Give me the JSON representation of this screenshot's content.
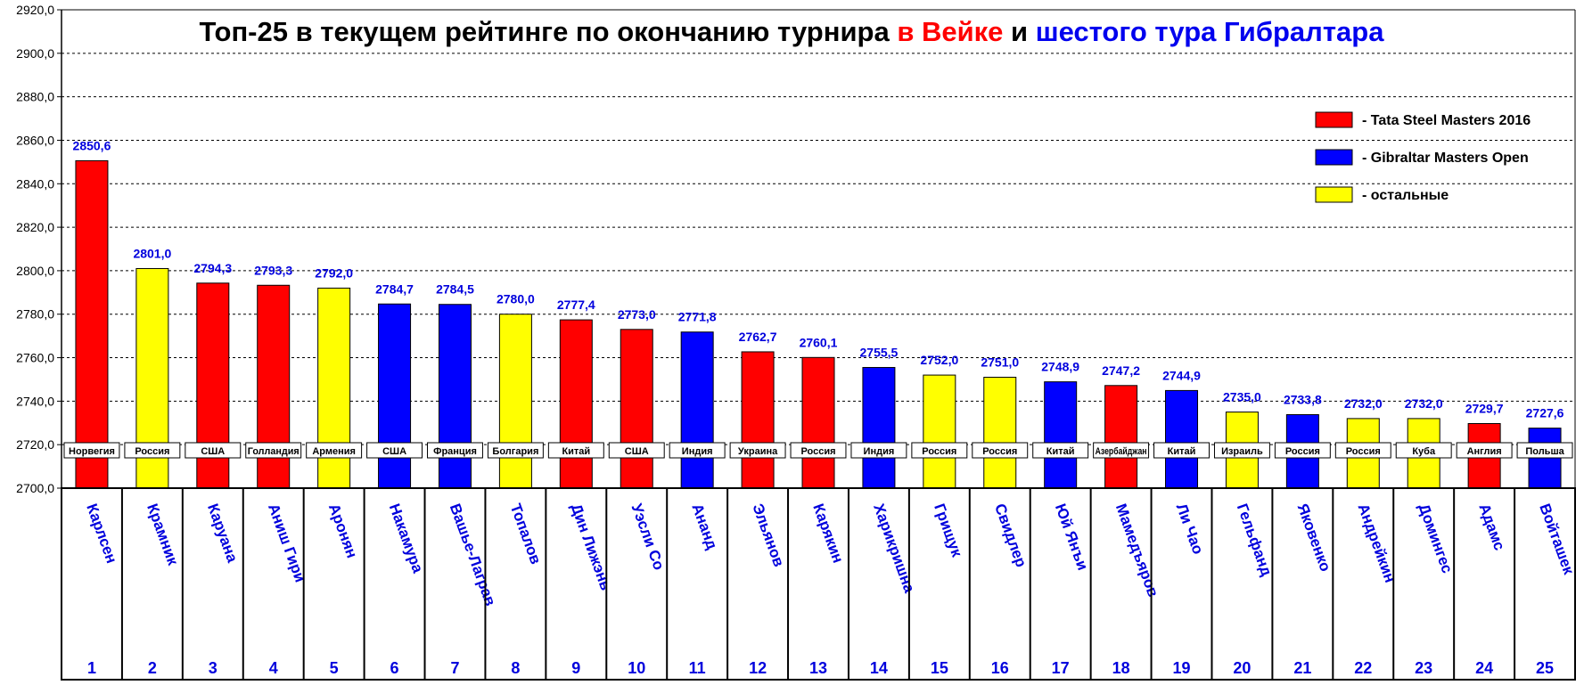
{
  "title": {
    "part1": "Топ-25 в текущем рейтинге по окончанию турнира ",
    "part2": "в Вейке",
    "part3": " и ",
    "part4": "шестого тура Гибралтара",
    "colors": {
      "default": "#000000",
      "wijk": "#ff0000",
      "gibraltar": "#0000ee"
    }
  },
  "legend": [
    {
      "key": "tata",
      "label": "- Tata Steel Masters 2016",
      "color": "#ff0000"
    },
    {
      "key": "gib",
      "label": "- Gibraltar Masters Open",
      "color": "#0000ff"
    },
    {
      "key": "other",
      "label": "- остальные",
      "color": "#ffff00"
    }
  ],
  "chart_data": {
    "type": "bar",
    "ylim": [
      2700,
      2920
    ],
    "ytick_step": 20,
    "ytick_format": "comma-1-decimal",
    "grid": "horizontal-dashed",
    "categories": [
      "1",
      "2",
      "3",
      "4",
      "5",
      "6",
      "7",
      "8",
      "9",
      "10",
      "11",
      "12",
      "13",
      "14",
      "15",
      "16",
      "17",
      "18",
      "19",
      "20",
      "21",
      "22",
      "23",
      "24",
      "25"
    ],
    "players": [
      {
        "rank": "1",
        "name": "Карлсен",
        "country": "Норвегия",
        "value": 2850.6,
        "label": "2850,6",
        "group": "tata"
      },
      {
        "rank": "2",
        "name": "Крамник",
        "country": "Россия",
        "value": 2801.0,
        "label": "2801,0",
        "group": "other"
      },
      {
        "rank": "3",
        "name": "Каруана",
        "country": "США",
        "value": 2794.3,
        "label": "2794,3",
        "group": "tata"
      },
      {
        "rank": "4",
        "name": "Аниш Гири",
        "country": "Голландия",
        "value": 2793.3,
        "label": "2793,3",
        "group": "tata"
      },
      {
        "rank": "5",
        "name": "Аронян",
        "country": "Армения",
        "value": 2792.0,
        "label": "2792,0",
        "group": "other"
      },
      {
        "rank": "6",
        "name": "Накамура",
        "country": "США",
        "value": 2784.7,
        "label": "2784,7",
        "group": "gib"
      },
      {
        "rank": "7",
        "name": "Вашье-Лаграв",
        "country": "Франция",
        "value": 2784.5,
        "label": "2784,5",
        "group": "gib"
      },
      {
        "rank": "8",
        "name": "Топалов",
        "country": "Болгария",
        "value": 2780.0,
        "label": "2780,0",
        "group": "other"
      },
      {
        "rank": "9",
        "name": "Дин Лижэнь",
        "country": "Китай",
        "value": 2777.4,
        "label": "2777,4",
        "group": "tata"
      },
      {
        "rank": "10",
        "name": "Уэсли Со",
        "country": "США",
        "value": 2773.0,
        "label": "2773,0",
        "group": "tata"
      },
      {
        "rank": "11",
        "name": "Ананд",
        "country": "Индия",
        "value": 2771.8,
        "label": "2771,8",
        "group": "gib"
      },
      {
        "rank": "12",
        "name": "Эльянов",
        "country": "Украина",
        "value": 2762.7,
        "label": "2762,7",
        "group": "tata"
      },
      {
        "rank": "13",
        "name": "Карякин",
        "country": "Россия",
        "value": 2760.1,
        "label": "2760,1",
        "group": "tata"
      },
      {
        "rank": "14",
        "name": "Харикришна",
        "country": "Индия",
        "value": 2755.5,
        "label": "2755,5",
        "group": "gib"
      },
      {
        "rank": "15",
        "name": "Грищук",
        "country": "Россия",
        "value": 2752.0,
        "label": "2752,0",
        "group": "other"
      },
      {
        "rank": "16",
        "name": "Свидлер",
        "country": "Россия",
        "value": 2751.0,
        "label": "2751,0",
        "group": "other"
      },
      {
        "rank": "17",
        "name": "Юй Янъи",
        "country": "Китай",
        "value": 2748.9,
        "label": "2748,9",
        "group": "gib"
      },
      {
        "rank": "18",
        "name": "Мамедъяров",
        "country": "Азербайджан",
        "value": 2747.2,
        "label": "2747,2",
        "group": "tata"
      },
      {
        "rank": "19",
        "name": "Ли Чао",
        "country": "Китай",
        "value": 2744.9,
        "label": "2744,9",
        "group": "gib"
      },
      {
        "rank": "20",
        "name": "Гельфанд",
        "country": "Израиль",
        "value": 2735.0,
        "label": "2735,0",
        "group": "other"
      },
      {
        "rank": "21",
        "name": "Яковенко",
        "country": "Россия",
        "value": 2733.8,
        "label": "2733,8",
        "group": "gib"
      },
      {
        "rank": "22",
        "name": "Андрейкин",
        "country": "Россия",
        "value": 2732.0,
        "label": "2732,0",
        "group": "other"
      },
      {
        "rank": "23",
        "name": "Домингес",
        "country": "Куба",
        "value": 2732.0,
        "label": "2732,0",
        "group": "other"
      },
      {
        "rank": "24",
        "name": "Адамс",
        "country": "Англия",
        "value": 2729.7,
        "label": "2729,7",
        "group": "tata"
      },
      {
        "rank": "25",
        "name": "Войташек",
        "country": "Польша",
        "value": 2727.6,
        "label": "2727,6",
        "group": "gib"
      }
    ]
  }
}
